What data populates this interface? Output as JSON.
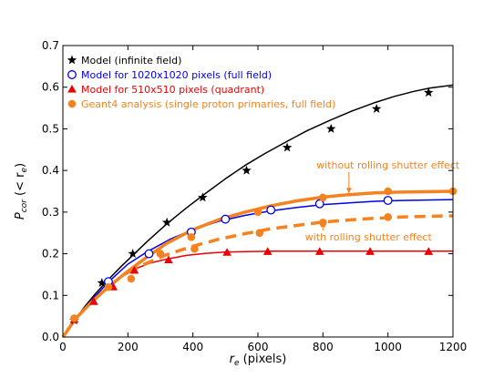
{
  "chart_data": {
    "type": "line",
    "xlabel_main": "r",
    "xlabel_sub": "e",
    "xlabel_rest": " (pixels)",
    "ylabel_main": "P",
    "ylabel_sub": "cor",
    "ylabel_mid": " (< r",
    "ylabel_sub2": "e",
    "ylabel_end": ")",
    "xlim": [
      0,
      1200
    ],
    "ylim": [
      0,
      0.7
    ],
    "xticks": [
      0,
      200,
      400,
      600,
      800,
      1000,
      1200
    ],
    "yticks": [
      0.0,
      0.1,
      0.2,
      0.3,
      0.4,
      0.5,
      0.6,
      0.7
    ],
    "ytick_labels": [
      "0.0",
      "0.1",
      "0.2",
      "0.3",
      "0.4",
      "0.5",
      "0.6",
      "0.7"
    ],
    "legend_position": "top-left",
    "colors": {
      "black": "#000000",
      "blue": "#0000ee",
      "red": "#ee0000",
      "orange": "#f5821f"
    },
    "series": [
      {
        "name": "Model (infinite field)",
        "marker": "star",
        "color": "#000000",
        "curve": [
          [
            0,
            0
          ],
          [
            20,
            0.022
          ],
          [
            40,
            0.045
          ],
          [
            70,
            0.076
          ],
          [
            100,
            0.104
          ],
          [
            140,
            0.138
          ],
          [
            180,
            0.17
          ],
          [
            220,
            0.2
          ],
          [
            260,
            0.23
          ],
          [
            320,
            0.272
          ],
          [
            380,
            0.31
          ],
          [
            430,
            0.34
          ],
          [
            500,
            0.38
          ],
          [
            560,
            0.412
          ],
          [
            620,
            0.44
          ],
          [
            690,
            0.47
          ],
          [
            750,
            0.495
          ],
          [
            820,
            0.52
          ],
          [
            890,
            0.543
          ],
          [
            960,
            0.563
          ],
          [
            1020,
            0.578
          ],
          [
            1080,
            0.59
          ],
          [
            1130,
            0.598
          ],
          [
            1200,
            0.605
          ]
        ],
        "markers": [
          [
            35,
            0.04
          ],
          [
            120,
            0.13
          ],
          [
            215,
            0.2
          ],
          [
            320,
            0.275
          ],
          [
            430,
            0.335
          ],
          [
            565,
            0.4
          ],
          [
            690,
            0.455
          ],
          [
            825,
            0.5
          ],
          [
            965,
            0.548
          ],
          [
            1125,
            0.587
          ]
        ]
      },
      {
        "name": "Model for 1020x1020 pixels (full field)",
        "marker": "circle",
        "color": "#0000ee",
        "curve": [
          [
            0,
            0
          ],
          [
            40,
            0.045
          ],
          [
            90,
            0.09
          ],
          [
            140,
            0.132
          ],
          [
            200,
            0.175
          ],
          [
            260,
            0.205
          ],
          [
            330,
            0.235
          ],
          [
            400,
            0.258
          ],
          [
            480,
            0.278
          ],
          [
            560,
            0.292
          ],
          [
            640,
            0.303
          ],
          [
            720,
            0.311
          ],
          [
            800,
            0.318
          ],
          [
            880,
            0.322
          ],
          [
            960,
            0.326
          ],
          [
            1040,
            0.328
          ],
          [
            1120,
            0.329
          ],
          [
            1200,
            0.33
          ]
        ],
        "markers": [
          [
            140,
            0.133
          ],
          [
            265,
            0.2
          ],
          [
            395,
            0.252
          ],
          [
            500,
            0.283
          ],
          [
            640,
            0.305
          ],
          [
            790,
            0.32
          ],
          [
            1000,
            0.328
          ]
        ]
      },
      {
        "name": "Model for 510x510 pixels (quadrant)",
        "marker": "triangle",
        "color": "#ee0000",
        "curve": [
          [
            0,
            0
          ],
          [
            40,
            0.045
          ],
          [
            100,
            0.095
          ],
          [
            160,
            0.135
          ],
          [
            220,
            0.163
          ],
          [
            270,
            0.178
          ],
          [
            320,
            0.187
          ],
          [
            380,
            0.196
          ],
          [
            440,
            0.201
          ],
          [
            500,
            0.204
          ],
          [
            560,
            0.205
          ],
          [
            650,
            0.206
          ],
          [
            800,
            0.206
          ],
          [
            950,
            0.206
          ],
          [
            1100,
            0.206
          ],
          [
            1200,
            0.206
          ]
        ],
        "markers": [
          [
            35,
            0.042
          ],
          [
            95,
            0.085
          ],
          [
            155,
            0.12
          ],
          [
            220,
            0.16
          ],
          [
            325,
            0.185
          ],
          [
            505,
            0.203
          ],
          [
            630,
            0.205
          ],
          [
            790,
            0.205
          ],
          [
            945,
            0.205
          ],
          [
            1125,
            0.205
          ]
        ]
      },
      {
        "name": "Geant4 analysis (single proton primaries, full field)",
        "marker": "filled-circle",
        "color": "#f5821f",
        "curve": [
          [
            0,
            0
          ],
          [
            40,
            0.045
          ],
          [
            90,
            0.085
          ],
          [
            140,
            0.12
          ],
          [
            200,
            0.158
          ],
          [
            260,
            0.193
          ],
          [
            320,
            0.225
          ],
          [
            400,
            0.258
          ],
          [
            480,
            0.282
          ],
          [
            560,
            0.3
          ],
          [
            640,
            0.315
          ],
          [
            720,
            0.327
          ],
          [
            800,
            0.336
          ],
          [
            880,
            0.342
          ],
          [
            960,
            0.346
          ],
          [
            1040,
            0.348
          ],
          [
            1120,
            0.349
          ],
          [
            1200,
            0.35
          ]
        ],
        "markers": [
          [
            35,
            0.045
          ],
          [
            140,
            0.12
          ],
          [
            210,
            0.14
          ],
          [
            300,
            0.2
          ],
          [
            395,
            0.24
          ],
          [
            600,
            0.3
          ],
          [
            800,
            0.335
          ],
          [
            1000,
            0.35
          ],
          [
            1200,
            0.35
          ]
        ]
      },
      {
        "name": "",
        "marker": "filled-circle",
        "color": "#f5821f",
        "dashed": true,
        "curve": [
          [
            200,
            0.155
          ],
          [
            260,
            0.178
          ],
          [
            320,
            0.198
          ],
          [
            400,
            0.218
          ],
          [
            480,
            0.235
          ],
          [
            560,
            0.248
          ],
          [
            640,
            0.26
          ],
          [
            720,
            0.268
          ],
          [
            800,
            0.276
          ],
          [
            880,
            0.281
          ],
          [
            960,
            0.285
          ],
          [
            1040,
            0.288
          ],
          [
            1120,
            0.29
          ],
          [
            1200,
            0.291
          ]
        ],
        "markers": [
          [
            405,
            0.212
          ],
          [
            605,
            0.25
          ],
          [
            800,
            0.275
          ],
          [
            1000,
            0.288
          ]
        ]
      }
    ],
    "annotations": [
      {
        "text": "without rolling shutter effect",
        "x": 1000,
        "y": 0.405,
        "color": "#f5821f",
        "arrow_to": [
          880,
          0.345
        ]
      },
      {
        "text": "with rolling shutter effect",
        "x": 940,
        "y": 0.232,
        "color": "#f5821f",
        "arrow_to": [
          800,
          0.277
        ]
      }
    ]
  }
}
